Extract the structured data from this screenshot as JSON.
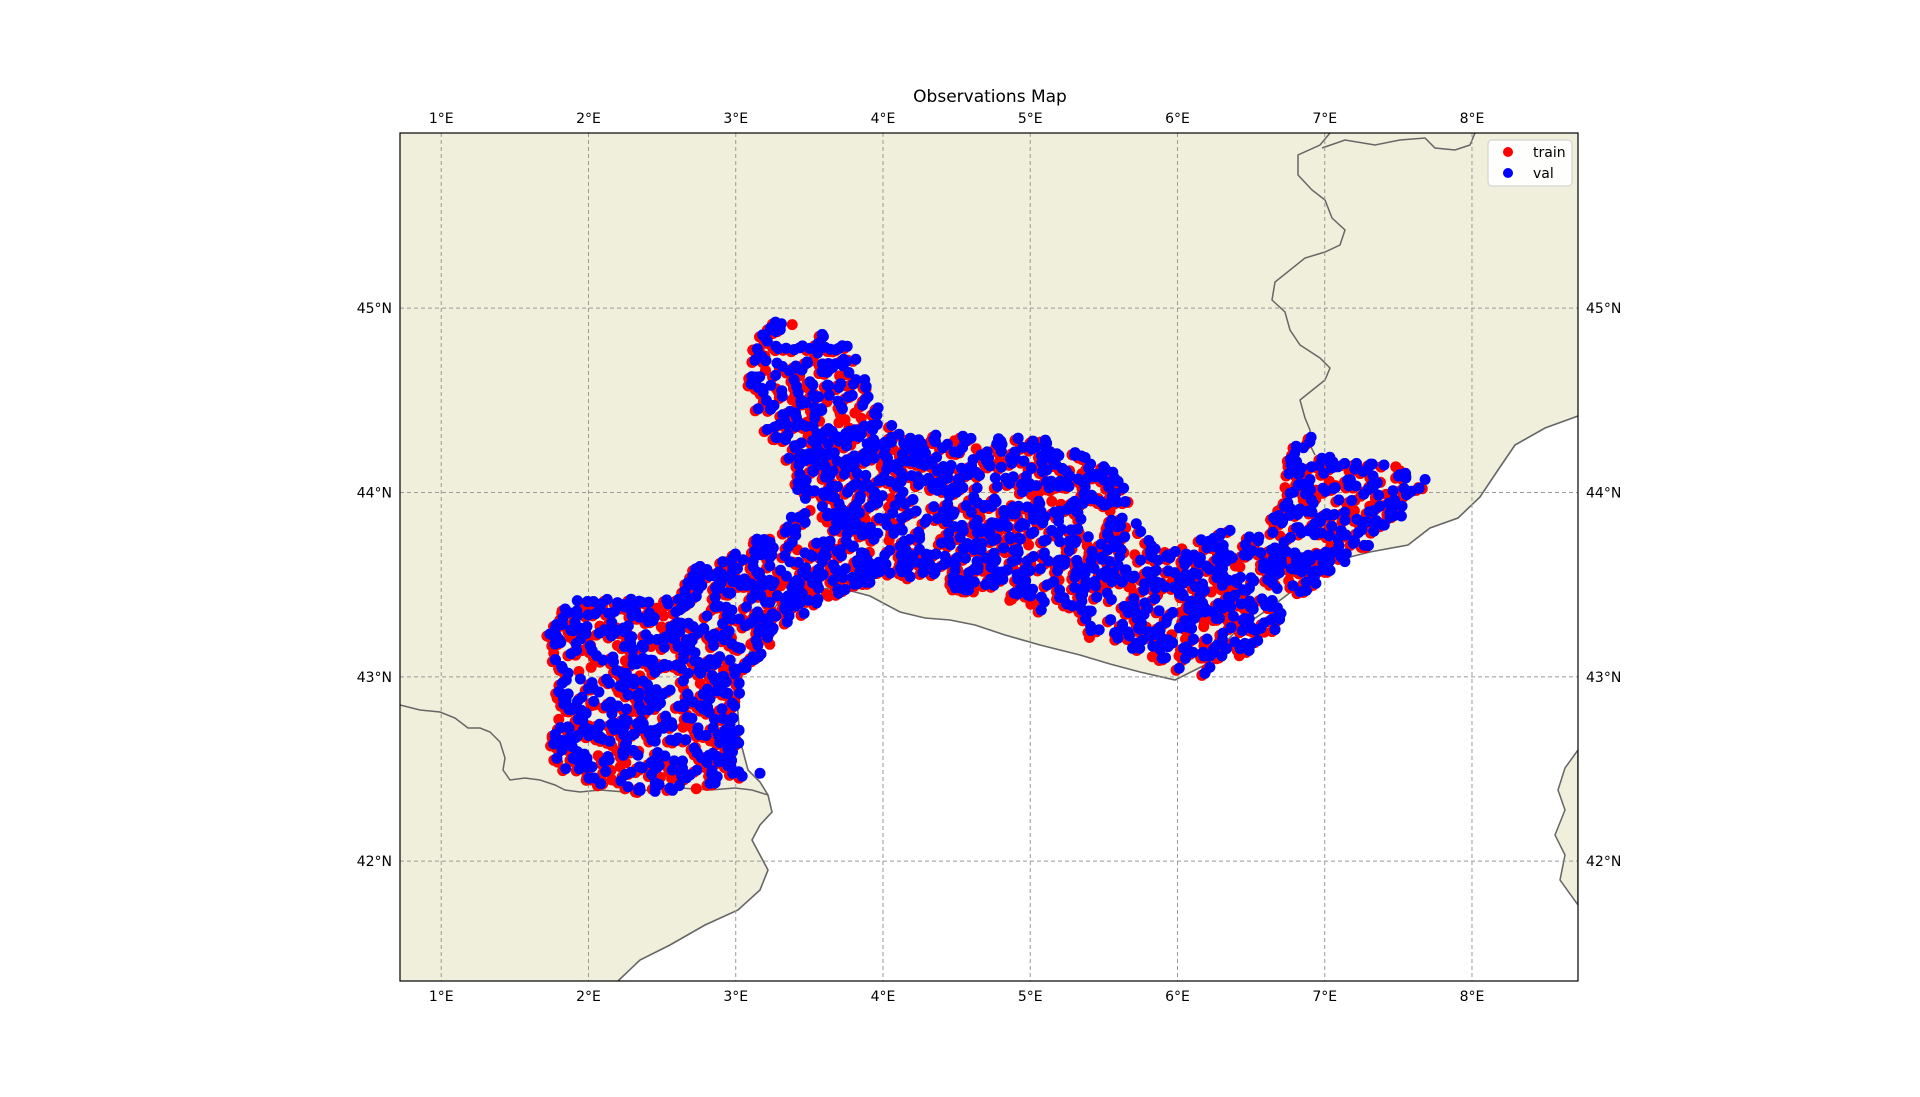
{
  "title": "Observations Map",
  "map": {
    "lon_range": [
      0.72,
      8.72
    ],
    "lat_range": [
      41.35,
      45.95
    ],
    "lon_ticks": [
      {
        "value": 1,
        "label": "1°E"
      },
      {
        "value": 2,
        "label": "2°E"
      },
      {
        "value": 3,
        "label": "3°E"
      },
      {
        "value": 4,
        "label": "4°E"
      },
      {
        "value": 5,
        "label": "5°E"
      },
      {
        "value": 6,
        "label": "6°E"
      },
      {
        "value": 7,
        "label": "7°E"
      },
      {
        "value": 8,
        "label": "8°E"
      }
    ],
    "lat_ticks": [
      {
        "value": 42,
        "label": "42°N"
      },
      {
        "value": 43,
        "label": "43°N"
      },
      {
        "value": 44,
        "label": "44°N"
      },
      {
        "value": 45,
        "label": "45°N"
      }
    ],
    "gridlines": true,
    "land_color": "#efefdb",
    "sea_color": "#ffffff",
    "coast_color": "#666666"
  },
  "legend": {
    "placement": "top-right",
    "items": [
      {
        "label": "train",
        "color": "#ff0000"
      },
      {
        "label": "val",
        "color": "#0000ff"
      }
    ]
  },
  "chart_data": {
    "type": "scatter",
    "title": "Observations Map",
    "xlabel": "",
    "ylabel": "",
    "xlim": [
      0.72,
      8.72
    ],
    "ylim": [
      41.35,
      45.95
    ],
    "grid": true,
    "legend_placement": "top-right",
    "series": [
      {
        "name": "train",
        "color": "#ff0000"
      },
      {
        "name": "val",
        "color": "#0000ff"
      }
    ],
    "region_outline": [
      [
        1.72,
        43.28
      ],
      [
        1.85,
        43.4
      ],
      [
        2.1,
        43.42
      ],
      [
        2.45,
        43.4
      ],
      [
        2.65,
        43.5
      ],
      [
        2.7,
        43.6
      ],
      [
        2.95,
        43.65
      ],
      [
        3.15,
        43.75
      ],
      [
        3.3,
        43.8
      ],
      [
        3.4,
        43.9
      ],
      [
        3.4,
        44.1
      ],
      [
        3.2,
        44.3
      ],
      [
        3.05,
        44.6
      ],
      [
        3.1,
        44.75
      ],
      [
        3.15,
        44.85
      ],
      [
        3.3,
        44.95
      ],
      [
        3.45,
        44.9
      ],
      [
        3.6,
        44.85
      ],
      [
        3.75,
        44.8
      ],
      [
        3.85,
        44.65
      ],
      [
        3.95,
        44.45
      ],
      [
        4.1,
        44.3
      ],
      [
        4.4,
        44.32
      ],
      [
        4.7,
        44.3
      ],
      [
        5.0,
        44.3
      ],
      [
        5.3,
        44.2
      ],
      [
        5.5,
        44.15
      ],
      [
        5.6,
        44.05
      ],
      [
        5.7,
        43.9
      ],
      [
        5.75,
        43.75
      ],
      [
        6.0,
        43.7
      ],
      [
        6.3,
        43.78
      ],
      [
        6.6,
        43.82
      ],
      [
        6.7,
        44.0
      ],
      [
        6.75,
        44.2
      ],
      [
        6.85,
        44.33
      ],
      [
        7.0,
        44.2
      ],
      [
        7.3,
        44.15
      ],
      [
        7.5,
        44.15
      ],
      [
        7.7,
        44.05
      ],
      [
        7.5,
        43.85
      ],
      [
        7.3,
        43.7
      ],
      [
        7.0,
        43.55
      ],
      [
        6.8,
        43.4
      ],
      [
        6.6,
        43.2
      ],
      [
        6.4,
        43.1
      ],
      [
        6.2,
        43.0
      ],
      [
        6.0,
        43.02
      ],
      [
        5.8,
        43.1
      ],
      [
        5.55,
        43.15
      ],
      [
        5.4,
        43.2
      ],
      [
        5.3,
        43.35
      ],
      [
        5.05,
        43.35
      ],
      [
        4.9,
        43.4
      ],
      [
        4.75,
        43.4
      ],
      [
        4.6,
        43.45
      ],
      [
        4.3,
        43.48
      ],
      [
        4.0,
        43.52
      ],
      [
        3.7,
        43.45
      ],
      [
        3.4,
        43.28
      ],
      [
        3.2,
        43.15
      ],
      [
        3.05,
        43.0
      ],
      [
        3.0,
        42.75
      ],
      [
        3.05,
        42.55
      ],
      [
        3.2,
        42.45
      ],
      [
        3.0,
        42.45
      ],
      [
        2.8,
        42.4
      ],
      [
        2.6,
        42.35
      ],
      [
        2.3,
        42.37
      ],
      [
        2.05,
        42.4
      ],
      [
        1.8,
        42.5
      ],
      [
        1.72,
        42.6
      ],
      [
        1.8,
        42.8
      ],
      [
        1.75,
        43.0
      ],
      [
        1.7,
        43.2
      ]
    ]
  }
}
